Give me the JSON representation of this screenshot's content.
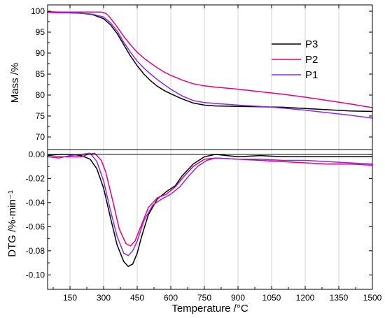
{
  "chart_data": {
    "type": "line",
    "x_axis": {
      "label": "Temperature /°C",
      "range": [
        50,
        1500
      ],
      "ticks": [
        150,
        300,
        450,
        600,
        750,
        900,
        1050,
        1200,
        1350,
        1500
      ],
      "tick_labels": [
        "150",
        "300",
        "450",
        "600",
        "750",
        "900",
        "1050",
        "1200",
        "1350",
        "1500"
      ]
    },
    "panels": [
      {
        "id": "mass",
        "ylabel": "Mass /%",
        "ylim": [
          67,
          101.5
        ],
        "y_ticks": [
          70,
          75,
          80,
          85,
          90,
          95,
          100
        ],
        "y_tick_labels": [
          "70",
          "75",
          "80",
          "85",
          "90",
          "95",
          "100"
        ],
        "legend": {
          "position": "top-right",
          "entries": [
            "P3",
            "P2",
            "P1"
          ]
        },
        "series": [
          {
            "name": "P3",
            "color": "#000000",
            "x": [
              50,
              100,
              150,
              200,
              250,
              300,
              330,
              360,
              390,
              420,
              450,
              480,
              510,
              540,
              570,
              600,
              650,
              700,
              750,
              800,
              900,
              1000,
              1100,
              1200,
              1300,
              1400,
              1500
            ],
            "y": [
              99.8,
              99.7,
              99.6,
              99.5,
              99.2,
              98.2,
              96.8,
              94.7,
              92.0,
              89.3,
              87.0,
              85.0,
              83.4,
              82.1,
              81.1,
              80.3,
              79.1,
              78.1,
              77.6,
              77.4,
              77.3,
              77.2,
              77.1,
              76.8,
              76.5,
              76.2,
              76.1
            ]
          },
          {
            "name": "P2",
            "color": "#e6007e",
            "x": [
              50,
              100,
              150,
              200,
              250,
              290,
              310,
              330,
              360,
              390,
              420,
              450,
              480,
              510,
              540,
              570,
              600,
              650,
              700,
              750,
              800,
              900,
              1000,
              1100,
              1200,
              1300,
              1400,
              1500
            ],
            "y": [
              99.9,
              99.8,
              99.8,
              99.8,
              99.8,
              99.8,
              99.5,
              98.4,
              96.3,
              94.0,
              92.0,
              90.2,
              88.8,
              87.6,
              86.5,
              85.5,
              84.7,
              83.6,
              82.7,
              82.2,
              81.9,
              81.4,
              80.8,
              80.2,
              79.5,
              78.7,
              77.9,
              77.0
            ]
          },
          {
            "name": "P1",
            "color": "#8a2be2",
            "x": [
              50,
              100,
              150,
              200,
              250,
              300,
              330,
              360,
              390,
              420,
              450,
              480,
              510,
              540,
              570,
              600,
              650,
              700,
              750,
              800,
              900,
              1000,
              1100,
              1200,
              1300,
              1400,
              1500
            ],
            "y": [
              99.7,
              99.6,
              99.6,
              99.5,
              99.3,
              98.6,
              97.3,
              95.3,
              92.6,
              90.2,
              88.1,
              86.4,
              85.0,
              83.7,
              82.5,
              81.4,
              79.8,
              78.7,
              78.2,
              78.0,
              77.6,
              77.3,
              76.9,
              76.4,
              75.8,
              75.2,
              74.5
            ]
          }
        ]
      },
      {
        "id": "dtg",
        "ylabel": "DTG /%·min⁻¹",
        "ylim": [
          -0.112,
          0.004
        ],
        "y_ticks": [
          0.0,
          -0.02,
          -0.04,
          -0.06,
          -0.08,
          -0.1
        ],
        "y_tick_labels": [
          "0.00",
          "-0.02",
          "-0.04",
          "-0.06",
          "-0.08",
          "-0.10"
        ],
        "zero_line": true,
        "series": [
          {
            "name": "P3",
            "color": "#000000",
            "x": [
              50,
              100,
              150,
              200,
              240,
              270,
              300,
              330,
              360,
              390,
              410,
              430,
              450,
              470,
              500,
              540,
              580,
              620,
              650,
              700,
              750,
              800,
              850,
              900,
              1000,
              1100,
              1200,
              1300,
              1400,
              1500
            ],
            "y": [
              -0.001,
              0.0,
              0.0,
              -0.001,
              -0.004,
              -0.012,
              -0.028,
              -0.052,
              -0.075,
              -0.089,
              -0.093,
              -0.091,
              -0.082,
              -0.068,
              -0.05,
              -0.037,
              -0.031,
              -0.026,
              -0.018,
              -0.008,
              -0.002,
              0.0,
              -0.001,
              -0.002,
              -0.001,
              -0.002,
              -0.002,
              -0.002,
              -0.002,
              -0.002
            ]
          },
          {
            "name": "P2",
            "color": "#e6007e",
            "x": [
              50,
              100,
              150,
              200,
              230,
              260,
              290,
              310,
              340,
              370,
              400,
              420,
              440,
              470,
              500,
              540,
              580,
              620,
              660,
              700,
              750,
              800,
              900,
              1000,
              1100,
              1200,
              1300,
              1400,
              1500
            ],
            "y": [
              -0.002,
              -0.002,
              -0.002,
              -0.002,
              0.0,
              0.001,
              -0.005,
              -0.015,
              -0.038,
              -0.062,
              -0.074,
              -0.076,
              -0.072,
              -0.058,
              -0.044,
              -0.036,
              -0.033,
              -0.027,
              -0.018,
              -0.01,
              -0.004,
              -0.003,
              -0.004,
              -0.005,
              -0.006,
              -0.007,
              -0.008,
              -0.008,
              -0.009
            ]
          },
          {
            "name": "P1",
            "color": "#8a2be2",
            "x": [
              50,
              100,
              150,
              200,
              240,
              270,
              300,
              330,
              360,
              390,
              410,
              430,
              450,
              480,
              520,
              560,
              600,
              640,
              680,
              720,
              760,
              800,
              900,
              1000,
              1100,
              1200,
              1300,
              1400,
              1500
            ],
            "y": [
              -0.002,
              -0.003,
              -0.001,
              0.0,
              0.001,
              -0.006,
              -0.022,
              -0.046,
              -0.068,
              -0.082,
              -0.084,
              -0.08,
              -0.072,
              -0.055,
              -0.042,
              -0.037,
              -0.033,
              -0.027,
              -0.018,
              -0.01,
              -0.005,
              -0.003,
              -0.004,
              -0.004,
              -0.005,
              -0.005,
              -0.006,
              -0.007,
              -0.008
            ]
          }
        ]
      }
    ]
  }
}
